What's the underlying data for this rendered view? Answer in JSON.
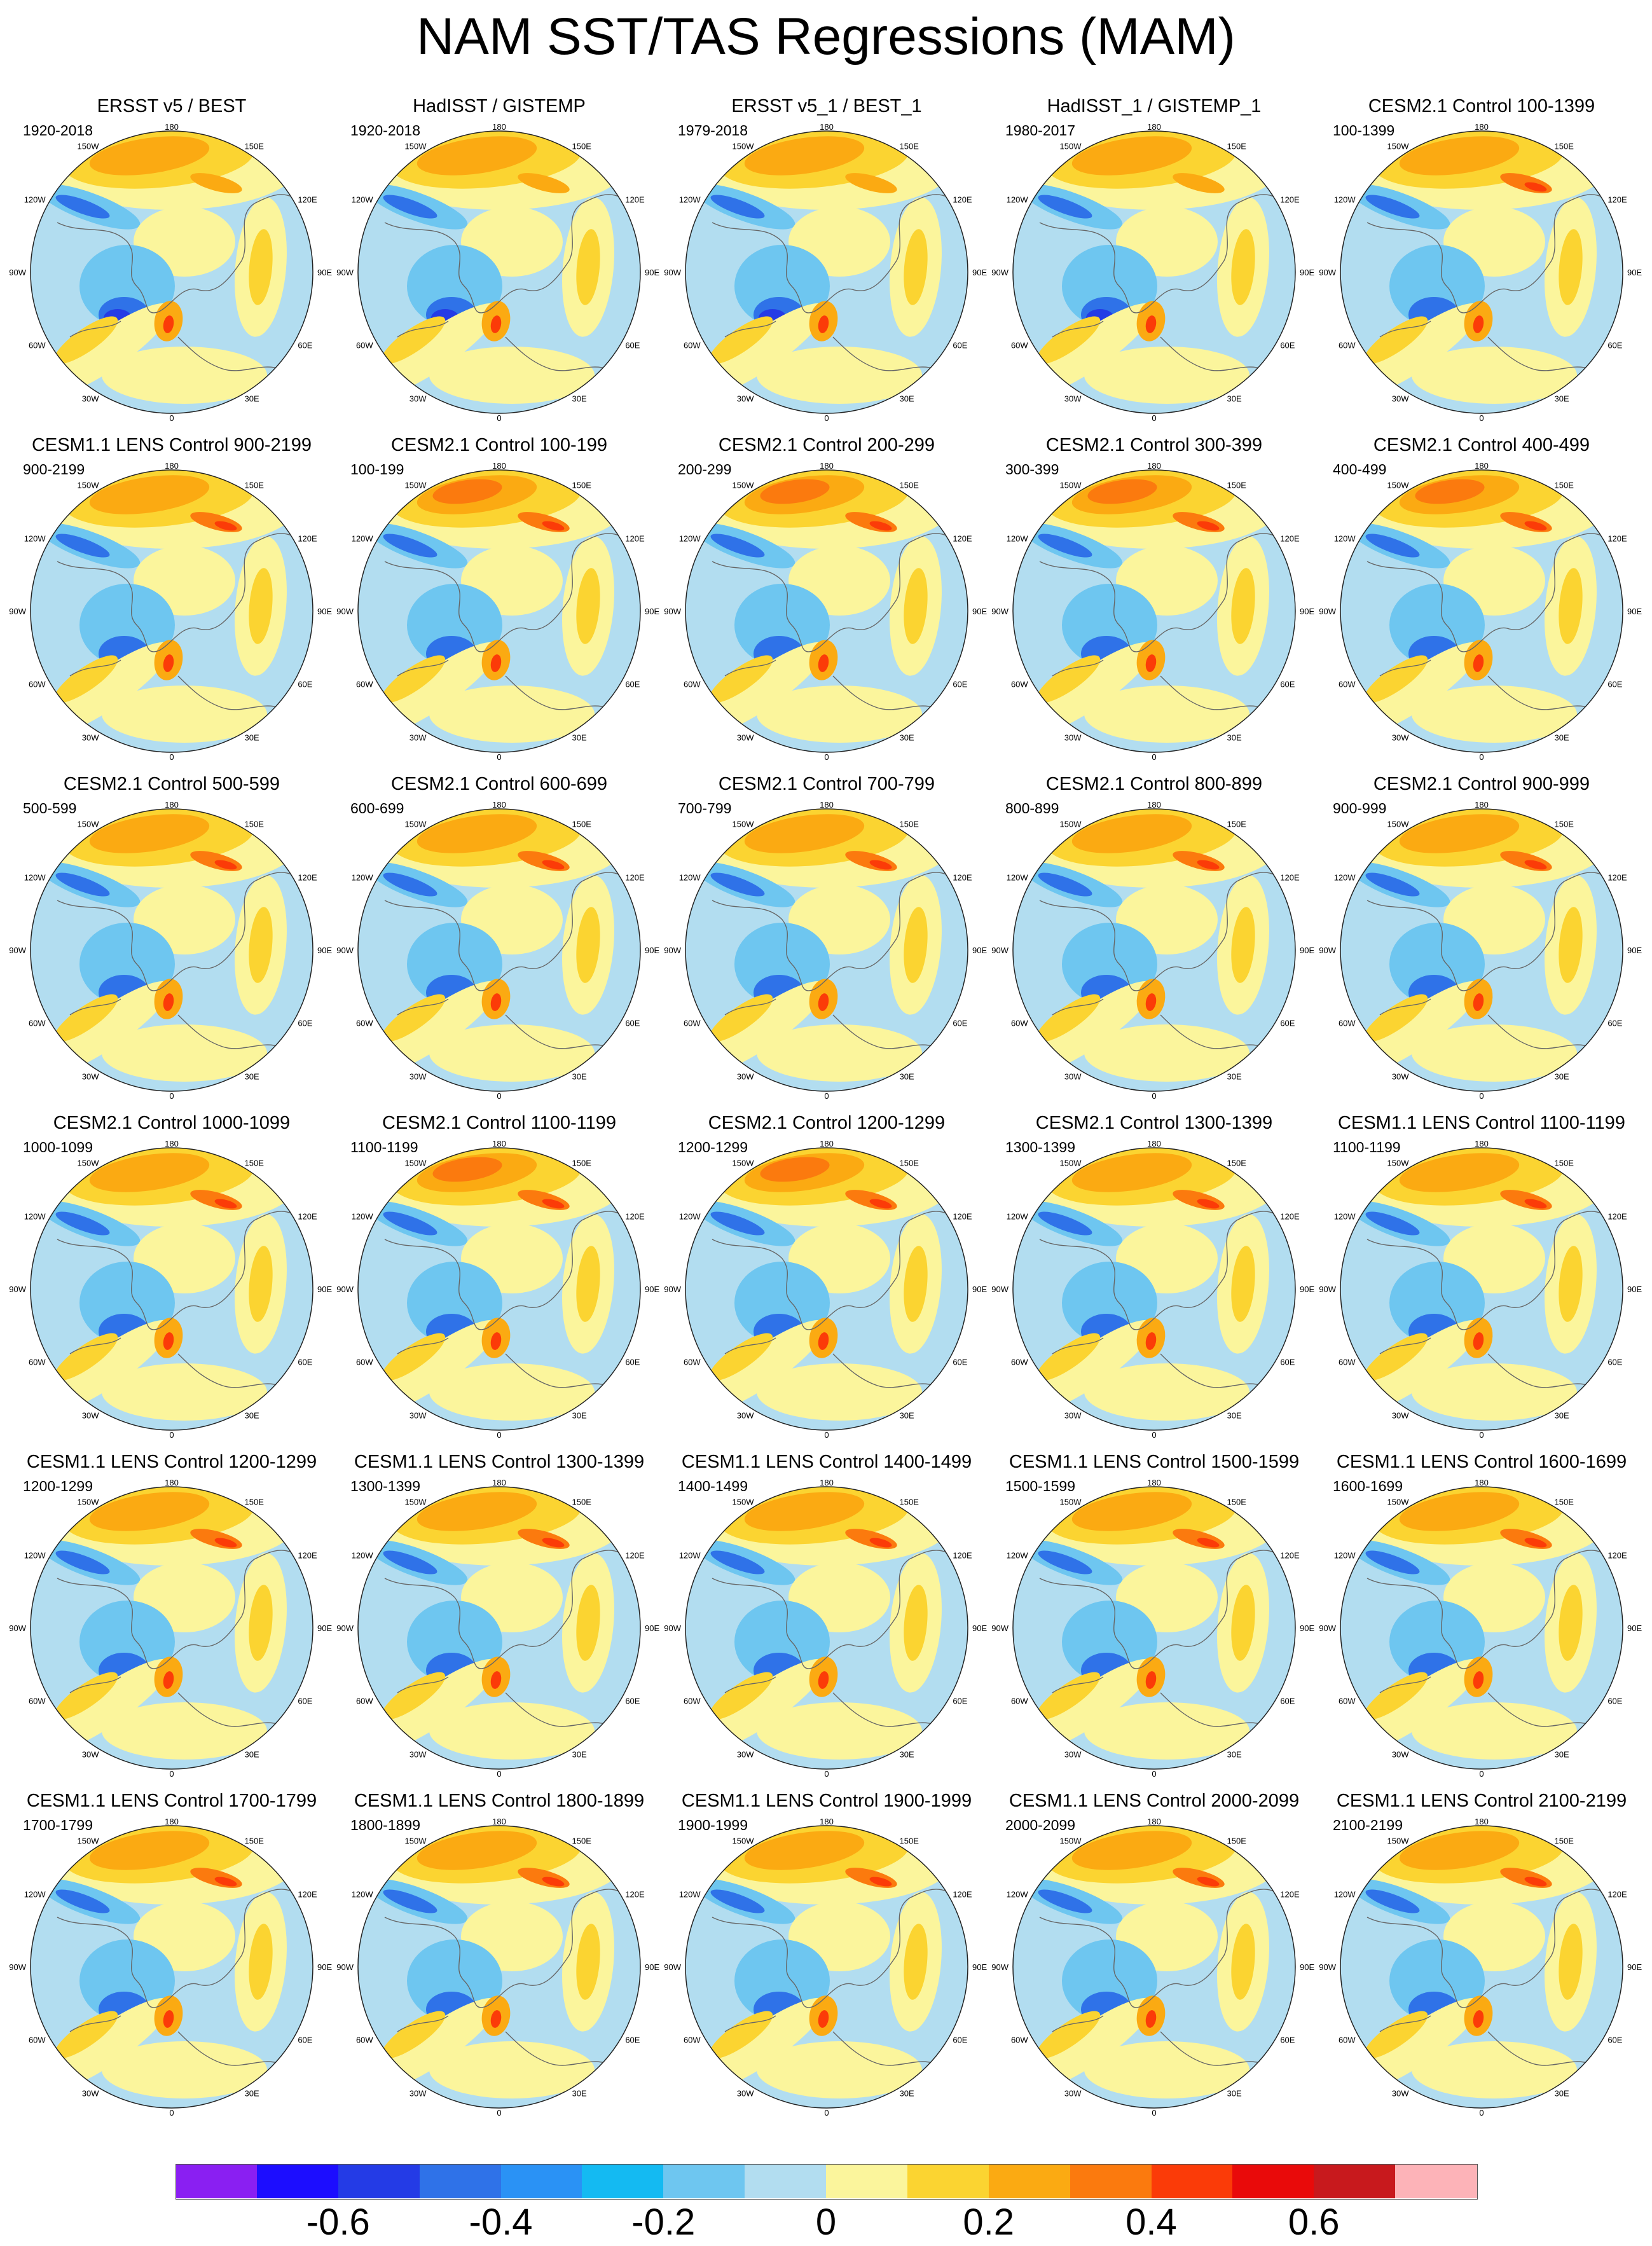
{
  "title": "NAM SST/TAS Regressions (MAM)",
  "map_labels": {
    "top": "180",
    "bottom": "0",
    "left_mid": "90W",
    "right_mid": "90E",
    "upper_left": "150W",
    "upper_right": "150E",
    "left_upper": "120W",
    "right_upper": "120E",
    "left_lower": "60W",
    "right_lower": "60E",
    "lower_left": "30W",
    "lower_right": "30E"
  },
  "panels": [
    {
      "title": "ERSST v5 / BEST",
      "period": "1920-2018"
    },
    {
      "title": "HadISST / GISTEMP",
      "period": "1920-2018"
    },
    {
      "title": "ERSST v5_1 / BEST_1",
      "period": "1979-2018"
    },
    {
      "title": "HadISST_1 / GISTEMP_1",
      "period": "1980-2017"
    },
    {
      "title": "CESM2.1 Control 100-1399",
      "period": "100-1399"
    },
    {
      "title": "CESM1.1 LENS Control 900-2199",
      "period": "900-2199"
    },
    {
      "title": "CESM2.1 Control 100-199",
      "period": "100-199"
    },
    {
      "title": "CESM2.1 Control 200-299",
      "period": "200-299"
    },
    {
      "title": "CESM2.1 Control 300-399",
      "period": "300-399"
    },
    {
      "title": "CESM2.1 Control 400-499",
      "period": "400-499"
    },
    {
      "title": "CESM2.1 Control 500-599",
      "period": "500-599"
    },
    {
      "title": "CESM2.1 Control 600-699",
      "period": "600-699"
    },
    {
      "title": "CESM2.1 Control 700-799",
      "period": "700-799"
    },
    {
      "title": "CESM2.1 Control 800-899",
      "period": "800-899"
    },
    {
      "title": "CESM2.1 Control 900-999",
      "period": "900-999"
    },
    {
      "title": "CESM2.1 Control 1000-1099",
      "period": "1000-1099"
    },
    {
      "title": "CESM2.1 Control 1100-1199",
      "period": "1100-1199"
    },
    {
      "title": "CESM2.1 Control 1200-1299",
      "period": "1200-1299"
    },
    {
      "title": "CESM2.1 Control 1300-1399",
      "period": "1300-1399"
    },
    {
      "title": "CESM1.1 LENS Control 1100-1199",
      "period": "1100-1199"
    },
    {
      "title": "CESM1.1 LENS Control 1200-1299",
      "period": "1200-1299"
    },
    {
      "title": "CESM1.1 LENS Control 1300-1399",
      "period": "1300-1399"
    },
    {
      "title": "CESM1.1 LENS Control 1400-1499",
      "period": "1400-1499"
    },
    {
      "title": "CESM1.1 LENS Control 1500-1599",
      "period": "1500-1599"
    },
    {
      "title": "CESM1.1 LENS Control 1600-1699",
      "period": "1600-1699"
    },
    {
      "title": "CESM1.1 LENS Control 1700-1799",
      "period": "1700-1799"
    },
    {
      "title": "CESM1.1 LENS Control 1800-1899",
      "period": "1800-1899"
    },
    {
      "title": "CESM1.1 LENS Control 1900-1999",
      "period": "1900-1999"
    },
    {
      "title": "CESM1.1 LENS Control 2000-2099",
      "period": "2000-2099"
    },
    {
      "title": "CESM1.1 LENS Control 2100-2199",
      "period": "2100-2199"
    }
  ],
  "colorbar": {
    "colors": [
      "#8a1ff2",
      "#1c0dff",
      "#243be6",
      "#2f72e8",
      "#2a92f5",
      "#14baf2",
      "#6ec6f0",
      "#b2ddf0",
      "#fbf59c",
      "#fbd431",
      "#fbaa12",
      "#fb7a0e",
      "#fb3b08",
      "#e90a0a",
      "#c8191d",
      "#fdb3b8"
    ],
    "tick_labels": [
      "-0.6",
      "-0.4",
      "-0.2",
      "0",
      "0.2",
      "0.4",
      "0.6"
    ],
    "tick_values": [
      -0.6,
      -0.4,
      -0.2,
      0,
      0.2,
      0.4,
      0.6
    ]
  }
}
